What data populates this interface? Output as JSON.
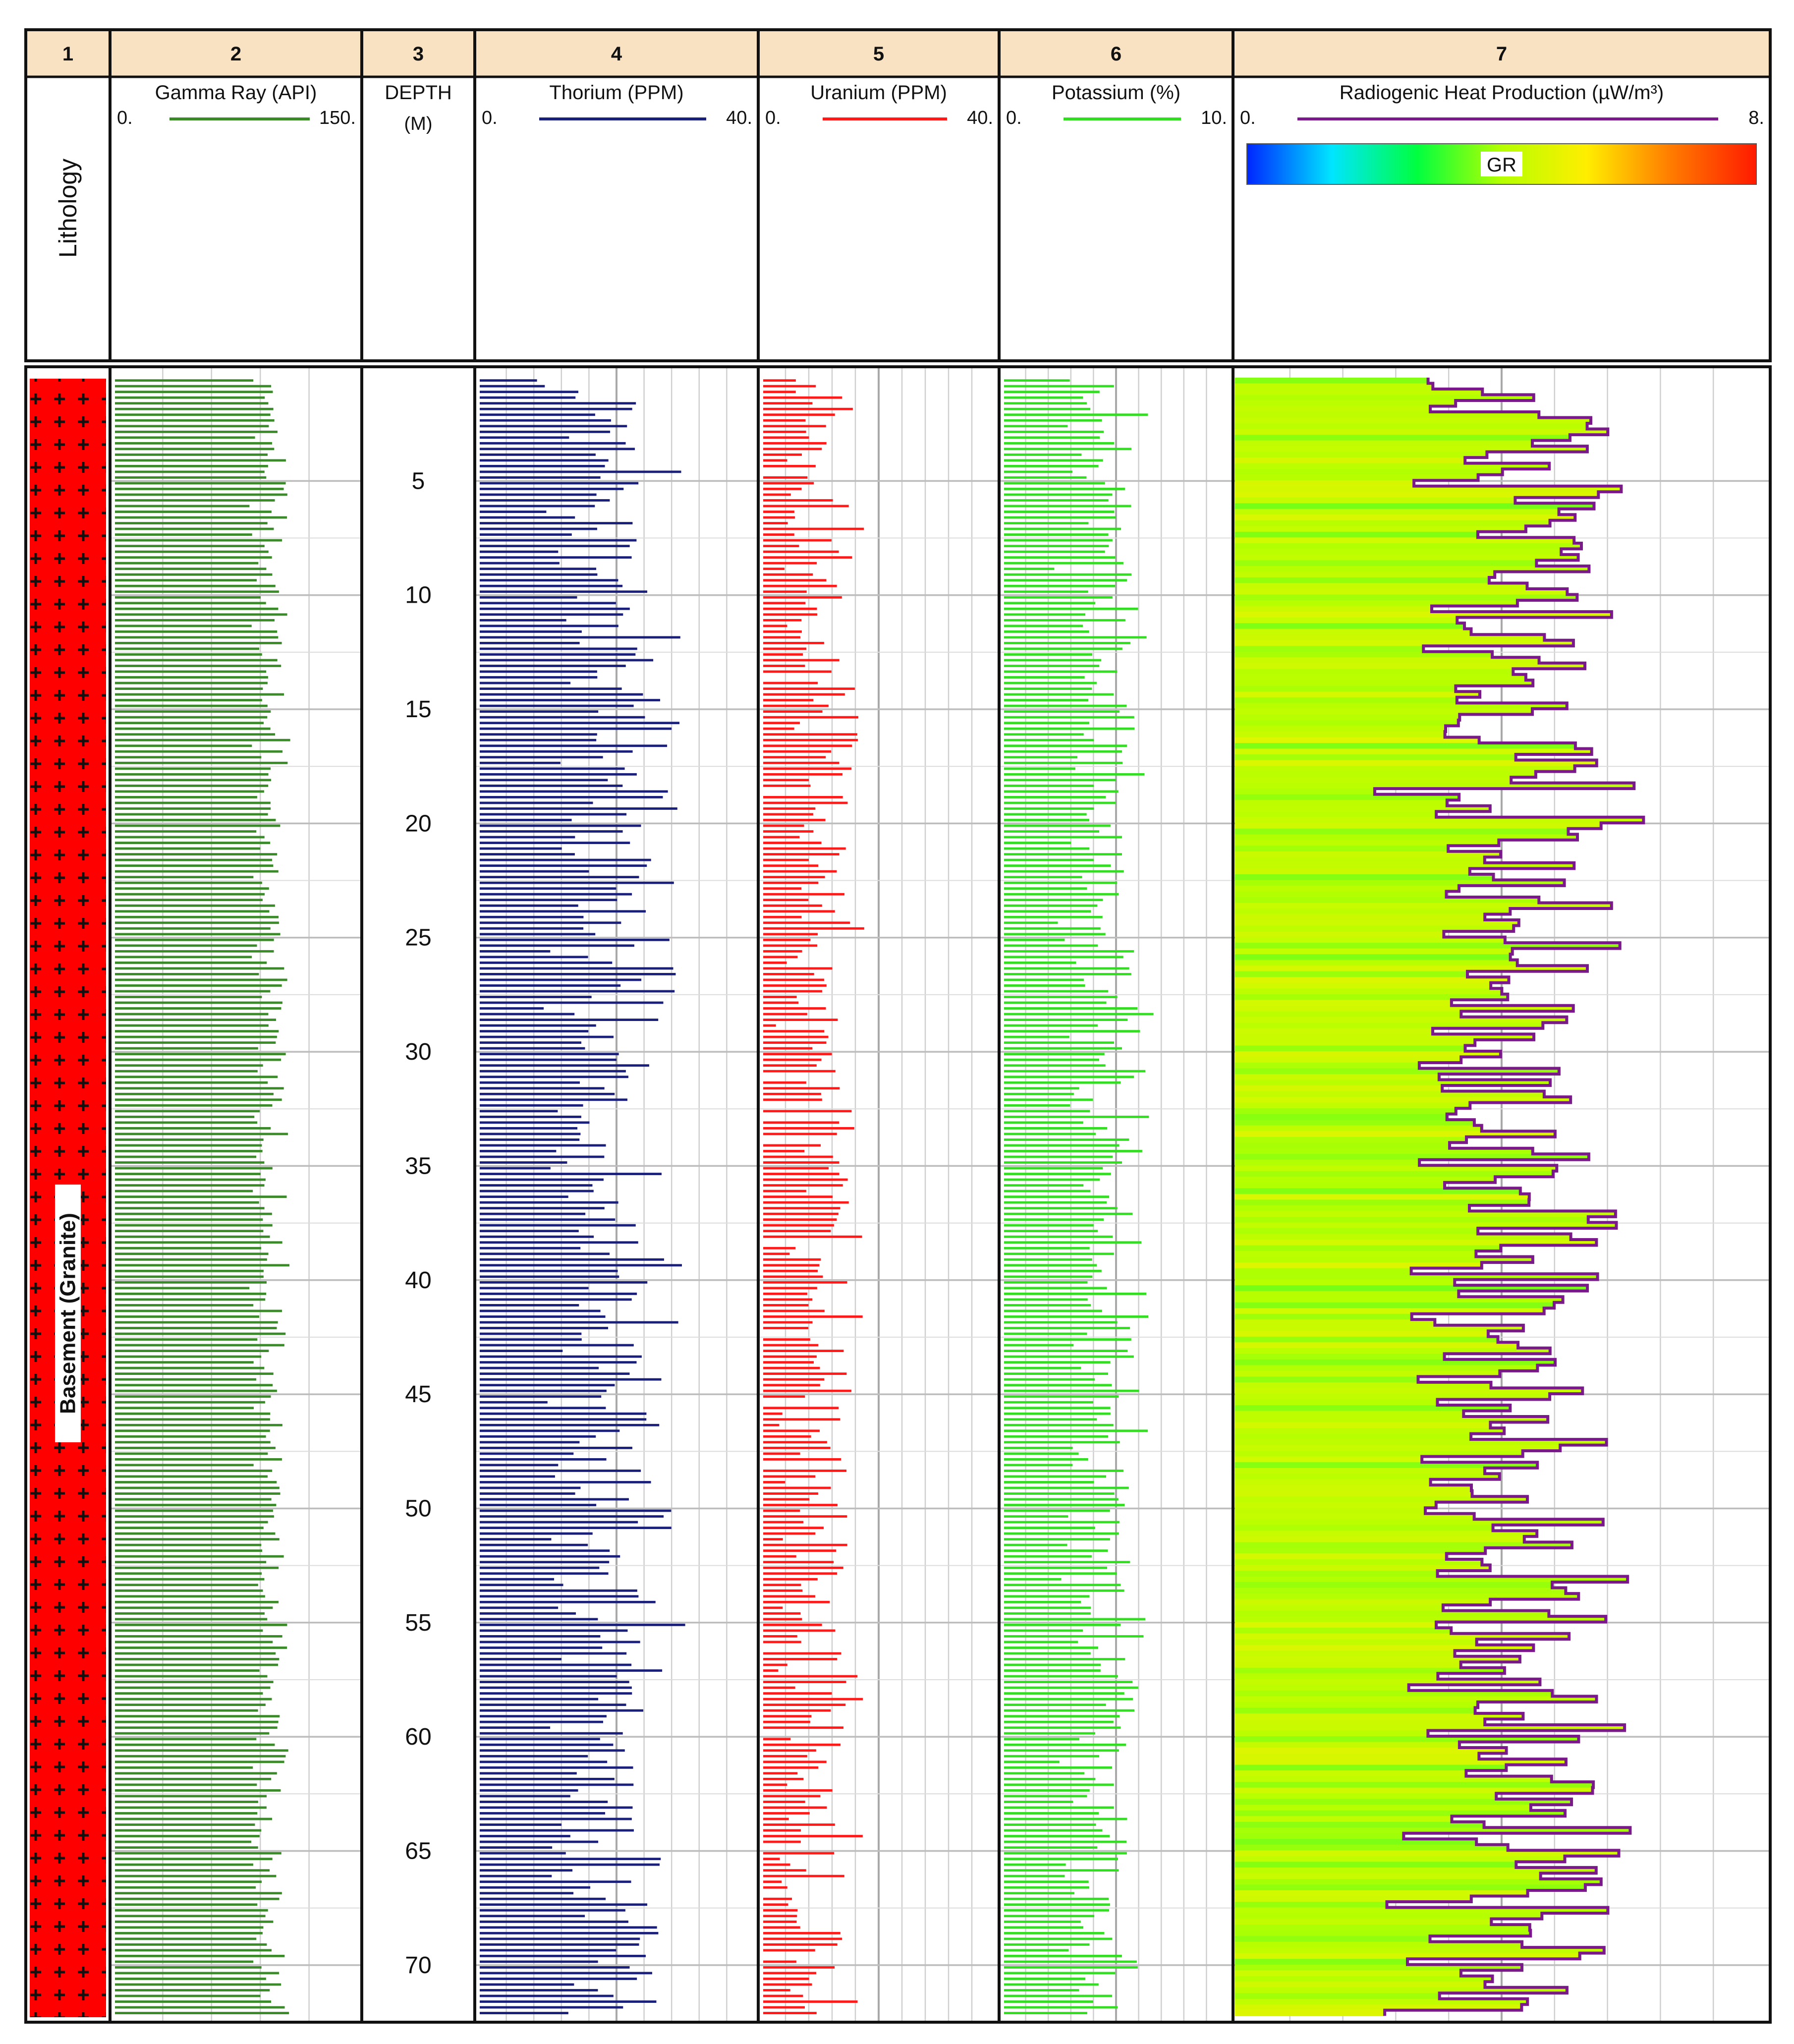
{
  "chart_data": {
    "type": "well-log",
    "track_numbers": [
      "1",
      "2",
      "3",
      "4",
      "5",
      "6",
      "7"
    ],
    "lithology": {
      "header": "Lithology",
      "label": "Basement (Granite)",
      "fill_color": "#ff0000",
      "pattern": "plus-signs"
    },
    "depth": {
      "header": "DEPTH",
      "unit": "(M)",
      "range": [
        0,
        72.5
      ],
      "tick_labels": [
        "5",
        "10",
        "15",
        "20",
        "25",
        "30",
        "35",
        "40",
        "45",
        "50",
        "55",
        "60",
        "65",
        "70"
      ],
      "tick_values": [
        5,
        10,
        15,
        20,
        25,
        30,
        35,
        40,
        45,
        50,
        55,
        60,
        65,
        70
      ]
    },
    "sample_step_m": 0.25,
    "tracks": [
      {
        "key": "gr",
        "name": "Gamma Ray (API)",
        "min": 0,
        "max": 150,
        "min_label": "0.",
        "max_label": "150.",
        "color": "#3a8a2a",
        "mean": 96,
        "spread": 14,
        "offset": 1
      },
      {
        "key": "th",
        "name": "Thorium (PPM)",
        "min": 0,
        "max": 40,
        "min_label": "0.",
        "max_label": "40.",
        "color": "#1a1f7a",
        "mean": 19,
        "spread": 12,
        "offset": 2
      },
      {
        "key": "u",
        "name": "Uranium (PPM)",
        "min": 0,
        "max": 40,
        "min_label": "0.",
        "max_label": "40.",
        "color": "#ff1a1a",
        "mean": 10,
        "spread": 8,
        "offset": 3
      },
      {
        "key": "k",
        "name": "Potassium (%)",
        "min": 0,
        "max": 10,
        "min_label": "0.",
        "max_label": "10.",
        "color": "#33dd22",
        "mean": 4.5,
        "spread": 2.3,
        "offset": 4
      },
      {
        "key": "rhp",
        "name": "Radiogenic Heat Production (µW/m³)",
        "min": 0,
        "max": 8,
        "min_label": "0.",
        "max_label": "8.",
        "color": "#7a1a8a",
        "mean": 4.2,
        "spread": 2.2,
        "offset": 5
      }
    ],
    "gr_colorbar": {
      "label": "GR",
      "colors": [
        "#0026ff",
        "#00e5ff",
        "#00ff40",
        "#b6ff00",
        "#ffee00",
        "#ff7b00",
        "#ff1a00"
      ]
    }
  }
}
